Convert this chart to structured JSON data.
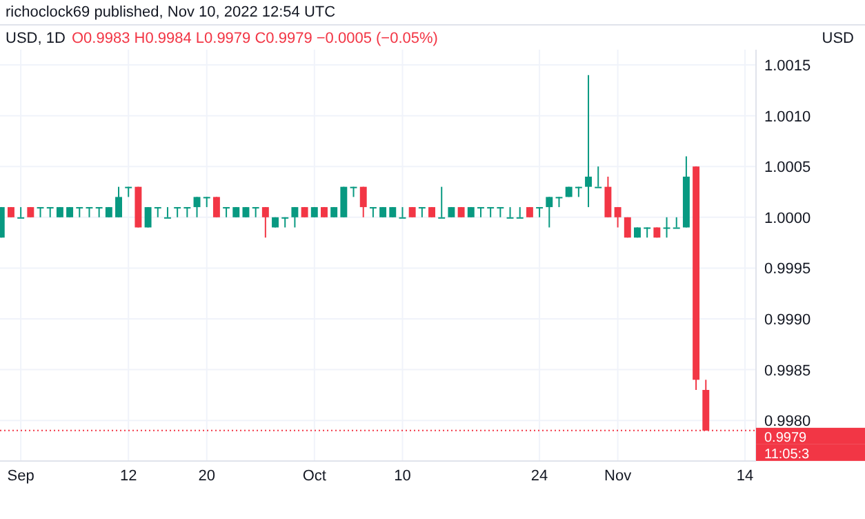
{
  "chart_data": {
    "type": "candlestick",
    "title": "USD, 1D",
    "subtitle": "O0.9983 H0.9984 L0.9979 C0.9979 −0.0005 (−0.05%)",
    "ylabel": "USD",
    "annotations": [
      "richoclock69 published, Nov 10, 2022 12:54 UTC",
      "11:05:3"
    ],
    "x": [
      "2022-08-30",
      "2022-08-31",
      "2022-09-01",
      "2022-09-02",
      "2022-09-03",
      "2022-09-04",
      "2022-09-05",
      "2022-09-06",
      "2022-09-07",
      "2022-09-08",
      "2022-09-09",
      "2022-09-10",
      "2022-09-11",
      "2022-09-12",
      "2022-09-13",
      "2022-09-14",
      "2022-09-15",
      "2022-09-16",
      "2022-09-17",
      "2022-09-18",
      "2022-09-19",
      "2022-09-20",
      "2022-09-21",
      "2022-09-22",
      "2022-09-23",
      "2022-09-24",
      "2022-09-25",
      "2022-09-26",
      "2022-09-27",
      "2022-09-28",
      "2022-09-29",
      "2022-09-30",
      "2022-10-01",
      "2022-10-02",
      "2022-10-03",
      "2022-10-04",
      "2022-10-05",
      "2022-10-06",
      "2022-10-07",
      "2022-10-08",
      "2022-10-09",
      "2022-10-10",
      "2022-10-11",
      "2022-10-12",
      "2022-10-13",
      "2022-10-14",
      "2022-10-15",
      "2022-10-16",
      "2022-10-17",
      "2022-10-18",
      "2022-10-19",
      "2022-10-20",
      "2022-10-21",
      "2022-10-22",
      "2022-10-23",
      "2022-10-24",
      "2022-10-25",
      "2022-10-26",
      "2022-10-27",
      "2022-10-28",
      "2022-10-29",
      "2022-10-30",
      "2022-10-31",
      "2022-11-01",
      "2022-11-02",
      "2022-11-03",
      "2022-11-04",
      "2022-11-05",
      "2022-11-06",
      "2022-11-07",
      "2022-11-08",
      "2022-11-09",
      "2022-11-10"
    ],
    "ohlc": [
      [
        0.9998,
        1.0001,
        0.9998,
        1.0001
      ],
      [
        1.0001,
        1.0001,
        1.0,
        1.0
      ],
      [
        1.0,
        1.0001,
        1.0,
        1.0
      ],
      [
        1.0001,
        1.0001,
        1.0,
        1.0
      ],
      [
        1.0001,
        1.0001,
        1.0,
        1.0001
      ],
      [
        1.0001,
        1.0001,
        1.0,
        1.0001
      ],
      [
        1.0,
        1.0001,
        1.0,
        1.0001
      ],
      [
        1.0,
        1.0001,
        1.0,
        1.0001
      ],
      [
        1.0001,
        1.0001,
        1.0,
        1.0001
      ],
      [
        1.0001,
        1.0001,
        1.0,
        1.0001
      ],
      [
        1.0001,
        1.0001,
        1.0,
        1.0001
      ],
      [
        1.0,
        1.0001,
        1.0,
        1.0001
      ],
      [
        1.0,
        1.0003,
        1.0,
        1.0002
      ],
      [
        1.0003,
        1.0003,
        1.0002,
        1.0003
      ],
      [
        1.0003,
        1.0003,
        0.9999,
        0.9999
      ],
      [
        0.9999,
        1.0001,
        0.9999,
        1.0001
      ],
      [
        1.0001,
        1.0001,
        1.0,
        1.0001
      ],
      [
        1.0,
        1.0001,
        1.0,
        1.0
      ],
      [
        1.0001,
        1.0001,
        1.0,
        1.0001
      ],
      [
        1.0001,
        1.0001,
        1.0,
        1.0001
      ],
      [
        1.0001,
        1.0002,
        1.0,
        1.0002
      ],
      [
        1.0002,
        1.0002,
        1.0001,
        1.0002
      ],
      [
        1.0002,
        1.0002,
        1.0,
        1.0
      ],
      [
        1.0001,
        1.0001,
        1.0,
        1.0001
      ],
      [
        1.0,
        1.0001,
        1.0,
        1.0001
      ],
      [
        1.0,
        1.0001,
        1.0,
        1.0001
      ],
      [
        1.0001,
        1.0001,
        1.0,
        1.0001
      ],
      [
        1.0001,
        1.0001,
        0.9998,
        1.0
      ],
      [
        0.9999,
        1.0,
        0.9999,
        1.0
      ],
      [
        1.0,
        1.0,
        0.9999,
        1.0
      ],
      [
        1.0,
        1.0001,
        0.9999,
        1.0001
      ],
      [
        1.0001,
        1.0001,
        1.0,
        1.0
      ],
      [
        1.0,
        1.0001,
        1.0,
        1.0001
      ],
      [
        1.0001,
        1.0001,
        1.0,
        1.0
      ],
      [
        1.0,
        1.0001,
        1.0,
        1.0001
      ],
      [
        1.0,
        1.0003,
        1.0,
        1.0003
      ],
      [
        1.0003,
        1.0003,
        1.0002,
        1.0003
      ],
      [
        1.0003,
        1.0003,
        1.0,
        1.0001
      ],
      [
        1.0001,
        1.0001,
        1.0,
        1.0001
      ],
      [
        1.0,
        1.0001,
        1.0,
        1.0001
      ],
      [
        1.0,
        1.0001,
        1.0,
        1.0001
      ],
      [
        1.0,
        1.0001,
        1.0,
        1.0
      ],
      [
        1.0001,
        1.0001,
        1.0,
        1.0
      ],
      [
        1.0001,
        1.0001,
        1.0,
        1.0001
      ],
      [
        1.0001,
        1.0001,
        1.0,
        1.0
      ],
      [
        1.0,
        1.0003,
        1.0,
        1.0
      ],
      [
        1.0,
        1.0001,
        1.0,
        1.0001
      ],
      [
        1.0001,
        1.0001,
        1.0,
        1.0
      ],
      [
        1.0,
        1.0001,
        1.0,
        1.0001
      ],
      [
        1.0001,
        1.0001,
        1.0,
        1.0001
      ],
      [
        1.0001,
        1.0001,
        1.0,
        1.0001
      ],
      [
        1.0001,
        1.0001,
        1.0,
        1.0001
      ],
      [
        1.0,
        1.0001,
        1.0,
        1.0
      ],
      [
        1.0,
        1.0001,
        1.0,
        1.0
      ],
      [
        1.0001,
        1.0001,
        1.0,
        1.0
      ],
      [
        1.0001,
        1.0001,
        1.0,
        1.0001
      ],
      [
        1.0001,
        1.0002,
        0.9999,
        1.0002
      ],
      [
        1.0002,
        1.0002,
        1.0001,
        1.0002
      ],
      [
        1.0002,
        1.0003,
        1.0002,
        1.0003
      ],
      [
        1.0003,
        1.0003,
        1.0002,
        1.0003
      ],
      [
        1.0003,
        1.0014,
        1.0001,
        1.0004
      ],
      [
        1.0003,
        1.0005,
        1.0003,
        1.0003
      ],
      [
        1.0003,
        1.0004,
        1.0,
        1.0
      ],
      [
        1.0001,
        1.0001,
        0.9999,
        1.0
      ],
      [
        1.0,
        1.0,
        0.9998,
        0.9998
      ],
      [
        0.9998,
        0.9999,
        0.9998,
        0.9999
      ],
      [
        0.9999,
        0.9999,
        0.9998,
        0.9999
      ],
      [
        0.9999,
        0.9999,
        0.9998,
        0.9998
      ],
      [
        0.9999,
        1.0,
        0.9998,
        0.9999
      ],
      [
        0.9999,
        1.0,
        0.9999,
        0.9999
      ],
      [
        0.9999,
        1.0006,
        0.9999,
        1.0004
      ],
      [
        1.0005,
        1.0005,
        0.9983,
        0.9984
      ],
      [
        0.9983,
        0.9984,
        0.9979,
        0.9979
      ]
    ],
    "colors": [
      "#089981",
      "#f23645",
      "#089981",
      "#f23645",
      "#089981",
      "#089981",
      "#089981",
      "#089981",
      "#089981",
      "#089981",
      "#089981",
      "#089981",
      "#089981",
      "#089981",
      "#f23645",
      "#089981",
      "#089981",
      "#089981",
      "#089981",
      "#089981",
      "#089981",
      "#089981",
      "#f23645",
      "#089981",
      "#089981",
      "#089981",
      "#089981",
      "#f23645",
      "#089981",
      "#089981",
      "#089981",
      "#f23645",
      "#089981",
      "#f23645",
      "#089981",
      "#089981",
      "#089981",
      "#f23645",
      "#089981",
      "#089981",
      "#089981",
      "#089981",
      "#f23645",
      "#089981",
      "#f23645",
      "#089981",
      "#089981",
      "#f23645",
      "#089981",
      "#089981",
      "#089981",
      "#089981",
      "#089981",
      "#089981",
      "#f23645",
      "#089981",
      "#089981",
      "#089981",
      "#089981",
      "#089981",
      "#089981",
      "#089981",
      "#f23645",
      "#f23645",
      "#f23645",
      "#089981",
      "#089981",
      "#f23645",
      "#089981",
      "#089981",
      "#089981",
      "#f23645",
      "#f23645"
    ],
    "xlim": [
      "2022-08-29T21:00",
      "2022-11-15T03:00"
    ],
    "xticks": [
      {
        "value": "2022-09-01",
        "label": "Sep"
      },
      {
        "value": "2022-09-12",
        "label": "12"
      },
      {
        "value": "2022-09-20",
        "label": "20"
      },
      {
        "value": "2022-10-01",
        "label": "Oct"
      },
      {
        "value": "2022-10-10",
        "label": "10"
      },
      {
        "value": "2022-10-24",
        "label": "24"
      },
      {
        "value": "2022-11-01",
        "label": "Nov"
      },
      {
        "value": "2022-11-14",
        "label": "14"
      }
    ],
    "ylim": [
      0.9976,
      1.00165
    ],
    "yticks": [
      {
        "value": 0.998,
        "label": "0.9980"
      },
      {
        "value": 0.9985,
        "label": "0.9985"
      },
      {
        "value": 0.999,
        "label": "0.9990"
      },
      {
        "value": 0.9995,
        "label": "0.9995"
      },
      {
        "value": 1,
        "label": "1.0000"
      },
      {
        "value": 1.0005,
        "label": "1.0005"
      },
      {
        "value": 1.001,
        "label": "1.0010"
      },
      {
        "value": 1.0015,
        "label": "1.0015"
      }
    ],
    "grid": true,
    "ref_lines": [
      {
        "axis": "y",
        "value": 0.9979,
        "label": "0.9979",
        "color": "#f23645",
        "line_style": "dotted"
      }
    ]
  }
}
